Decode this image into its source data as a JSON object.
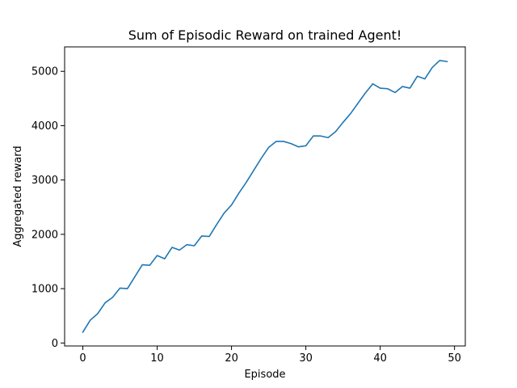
{
  "chart_data": {
    "type": "line",
    "title": "Sum of Episodic Reward on trained Agent!",
    "xlabel": "Episode",
    "ylabel": "Aggregated reward",
    "xlim": [
      -2.45,
      51.45
    ],
    "ylim": [
      -55,
      5450
    ],
    "xticks": [
      0,
      10,
      20,
      30,
      40,
      50
    ],
    "yticks": [
      0,
      1000,
      2000,
      3000,
      4000,
      5000
    ],
    "grid": false,
    "legend": "none",
    "series": [
      {
        "color": "#1f77b4",
        "x": [
          0,
          1,
          2,
          3,
          4,
          5,
          6,
          7,
          8,
          9,
          10,
          11,
          12,
          13,
          14,
          15,
          16,
          17,
          18,
          19,
          20,
          21,
          22,
          23,
          24,
          25,
          26,
          27,
          28,
          29,
          30,
          31,
          32,
          33,
          34,
          35,
          36,
          37,
          38,
          39,
          40,
          41,
          42,
          43,
          44,
          45,
          46,
          47,
          48,
          49
        ],
        "y": [
          200,
          420,
          540,
          740,
          840,
          1010,
          1000,
          1220,
          1440,
          1430,
          1610,
          1550,
          1760,
          1710,
          1810,
          1790,
          1970,
          1960,
          2180,
          2390,
          2540,
          2760,
          2960,
          3180,
          3400,
          3600,
          3710,
          3710,
          3670,
          3610,
          3630,
          3810,
          3810,
          3780,
          3890,
          4060,
          4220,
          4410,
          4600,
          4770,
          4690,
          4680,
          4610,
          4720,
          4690,
          4910,
          4860,
          5070,
          5200,
          5180
        ]
      }
    ]
  }
}
